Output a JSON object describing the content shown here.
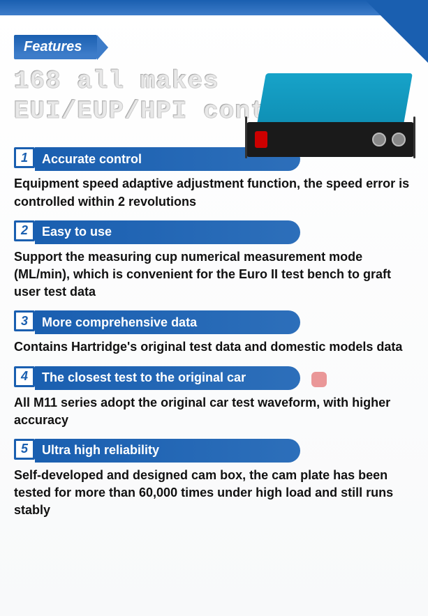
{
  "ribbon_label": "Features",
  "title_line1": "168 all makes",
  "title_line2": "EUI/EUP/HPI control unit",
  "features": [
    {
      "num": "1",
      "heading": "Accurate control",
      "desc": "Equipment speed adaptive adjustment function, the speed error is controlled within 2 revolutions"
    },
    {
      "num": "2",
      "heading": "Easy to use",
      "desc": "Support the measuring cup numerical measurement mode (ML/min), which is convenient for the Euro II test bench to graft user test data"
    },
    {
      "num": "3",
      "heading": "More comprehensive data",
      "desc": "Contains Hartridge's original test data and domestic models data"
    },
    {
      "num": "4",
      "heading": "The closest test to the original car",
      "desc": "All M11 series adopt the original car test waveform, with higher accuracy"
    },
    {
      "num": "5",
      "heading": "Ultra high reliability",
      "desc": "Self-developed and designed cam box, the cam plate has been tested for more than 60,000 times under high load and still runs stably"
    }
  ],
  "colors": {
    "primary_blue": "#1a5fb0",
    "gradient_blue": "#3d7cc9",
    "device_blue": "#17a3c9",
    "text": "#111111",
    "title_fill": "#e8e8e8"
  },
  "typography": {
    "ribbon_fontsize": 20,
    "title_fontsize": 36,
    "heading_fontsize": 18,
    "desc_fontsize": 18
  }
}
